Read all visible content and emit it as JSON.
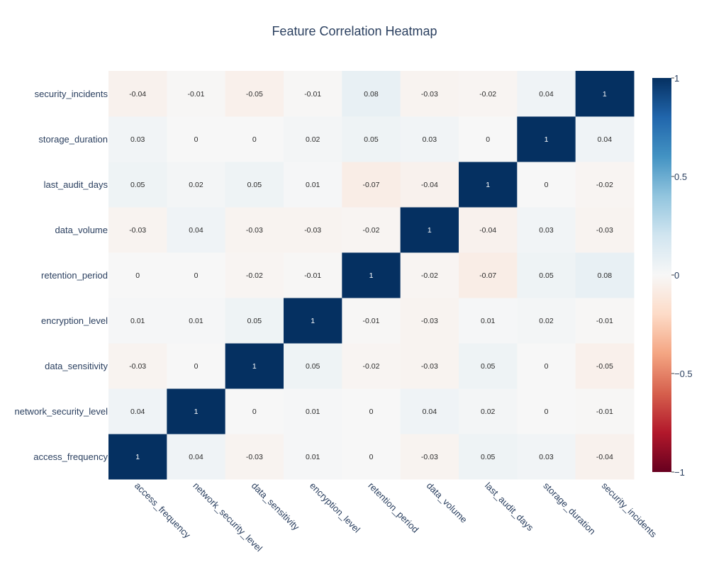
{
  "chart_data": {
    "type": "heatmap",
    "title": "Feature Correlation Heatmap",
    "x_categories": [
      "access_frequency",
      "network_security_level",
      "data_sensitivity",
      "encryption_level",
      "retention_period",
      "data_volume",
      "last_audit_days",
      "storage_duration",
      "security_incidents"
    ],
    "y_categories": [
      "access_frequency",
      "network_security_level",
      "data_sensitivity",
      "encryption_level",
      "retention_period",
      "data_volume",
      "last_audit_days",
      "storage_duration",
      "security_incidents"
    ],
    "values": [
      [
        1,
        0.04,
        -0.03,
        0.01,
        0,
        -0.03,
        0.05,
        0.03,
        -0.04
      ],
      [
        0.04,
        1,
        0,
        0.01,
        0,
        0.04,
        0.02,
        0,
        -0.01
      ],
      [
        -0.03,
        0,
        1,
        0.05,
        -0.02,
        -0.03,
        0.05,
        0,
        -0.05
      ],
      [
        0.01,
        0.01,
        0.05,
        1,
        -0.01,
        -0.03,
        0.01,
        0.02,
        -0.01
      ],
      [
        0,
        0,
        -0.02,
        -0.01,
        1,
        -0.02,
        -0.07,
        0.05,
        0.08
      ],
      [
        -0.03,
        0.04,
        -0.03,
        -0.03,
        -0.02,
        1,
        -0.04,
        0.03,
        -0.03
      ],
      [
        0.05,
        0.02,
        0.05,
        0.01,
        -0.07,
        -0.04,
        1,
        0,
        -0.02
      ],
      [
        0.03,
        0,
        0,
        0.02,
        0.05,
        0.03,
        0,
        1,
        0.04
      ],
      [
        -0.04,
        -0.01,
        -0.05,
        -0.01,
        0.08,
        -0.03,
        -0.02,
        0.04,
        1
      ]
    ],
    "zmin": -1,
    "zmax": 1,
    "colorscale": [
      [
        0,
        "#67001f"
      ],
      [
        0.1,
        "#b2182b"
      ],
      [
        0.2,
        "#d6604d"
      ],
      [
        0.3,
        "#f4a582"
      ],
      [
        0.4,
        "#fddbc7"
      ],
      [
        0.5,
        "#f7f7f7"
      ],
      [
        0.6,
        "#d1e5f0"
      ],
      [
        0.7,
        "#92c5de"
      ],
      [
        0.8,
        "#4393c3"
      ],
      [
        0.9,
        "#2166ac"
      ],
      [
        1,
        "#053061"
      ]
    ],
    "colorbar_ticks": [
      {
        "value": 1,
        "label": "1"
      },
      {
        "value": 0.5,
        "label": "0.5"
      },
      {
        "value": 0,
        "label": "0"
      },
      {
        "value": -0.5,
        "label": "−0.5"
      },
      {
        "value": -1,
        "label": "−1"
      }
    ],
    "annotations": true,
    "x_tick_angle": 45,
    "legend": "colorbar-right"
  }
}
